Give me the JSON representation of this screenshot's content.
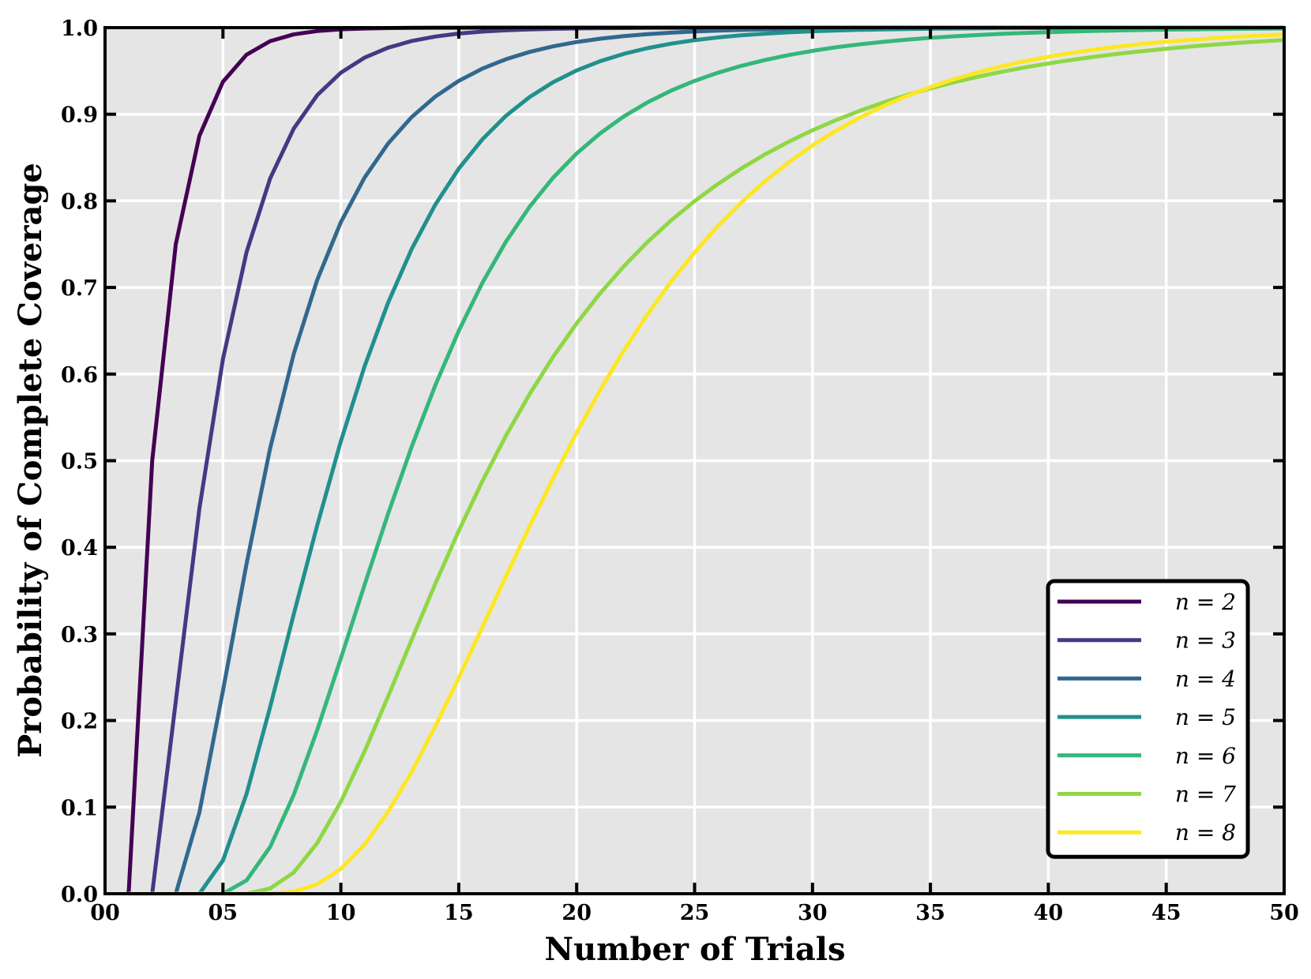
{
  "chart_data": {
    "type": "line",
    "title": "",
    "xlabel": "Number of Trials",
    "ylabel": "Probability of Complete Coverage",
    "xlim": [
      0,
      50
    ],
    "ylim": [
      0.0,
      1.0
    ],
    "grid": true,
    "background_color": "#e5e5e5",
    "legend_position": "lower-right",
    "x_ticks": [
      0,
      5,
      10,
      15,
      20,
      25,
      30,
      35,
      40,
      45,
      50
    ],
    "x_tick_labels": [
      "00",
      "05",
      "10",
      "15",
      "20",
      "25",
      "30",
      "35",
      "40",
      "45",
      "50"
    ],
    "y_ticks": [
      0.0,
      0.1,
      0.2,
      0.3,
      0.4,
      0.5,
      0.6,
      0.7,
      0.8,
      0.9,
      1.0
    ],
    "y_tick_labels": [
      "0.0",
      "0.1",
      "0.2",
      "0.3",
      "0.4",
      "0.5",
      "0.6",
      "0.7",
      "0.8",
      "0.9",
      "1.0"
    ],
    "x": [
      1,
      2,
      3,
      4,
      5,
      6,
      7,
      8,
      9,
      10,
      11,
      12,
      13,
      14,
      15,
      16,
      17,
      18,
      19,
      20,
      21,
      22,
      23,
      24,
      25,
      26,
      27,
      28,
      29,
      30,
      31,
      32,
      33,
      34,
      35,
      36,
      37,
      38,
      39,
      40,
      41,
      42,
      43,
      44,
      45,
      46,
      47,
      48,
      49,
      50
    ],
    "series": [
      {
        "name": "n = 2",
        "color": "#440154",
        "values": [
          0.0,
          0.5,
          0.75,
          0.875,
          0.9375,
          0.96875,
          0.984375,
          0.9921875,
          0.99609375,
          0.998047,
          0.999023,
          0.999512,
          0.999756,
          0.999878,
          0.999939,
          0.999969,
          0.999985,
          0.999992,
          0.999996,
          0.999998,
          0.999999,
          1.0,
          1.0,
          1.0,
          1.0,
          1.0,
          1.0,
          1.0,
          1.0,
          1.0,
          1.0,
          1.0,
          1.0,
          1.0,
          1.0,
          1.0,
          1.0,
          1.0,
          1.0,
          1.0,
          1.0,
          1.0,
          1.0,
          1.0,
          1.0,
          1.0,
          1.0,
          1.0,
          1.0,
          1.0
        ]
      },
      {
        "name": "n = 3",
        "color": "#443983",
        "values": [
          0.0,
          0.0,
          0.222222,
          0.444444,
          0.617284,
          0.740741,
          0.825789,
          0.883402,
          0.922116,
          0.947976,
          0.96526,
          0.976816,
          0.98454,
          0.989693,
          0.993128,
          0.995418,
          0.996945,
          0.997963,
          0.998642,
          0.999095,
          0.999397,
          0.999598,
          0.999732,
          0.999821,
          0.999881,
          0.99992,
          0.999947,
          0.999965,
          0.999976,
          0.999984,
          0.99999,
          0.999993,
          0.999995,
          0.999997,
          0.999998,
          0.999999,
          0.999999,
          0.999999,
          1.0,
          1.0,
          1.0,
          1.0,
          1.0,
          1.0,
          1.0,
          1.0,
          1.0,
          1.0,
          1.0,
          1.0
        ]
      },
      {
        "name": "n = 4",
        "color": "#31688e",
        "values": [
          0.0,
          0.0,
          0.0,
          0.09375,
          0.234375,
          0.380859,
          0.51416,
          0.623016,
          0.708954,
          0.775411,
          0.826595,
          0.866108,
          0.896657,
          0.920276,
          0.938529,
          0.95263,
          0.963518,
          0.971919,
          0.978397,
          0.983388,
          0.987231,
          0.990189,
          0.992464,
          0.994213,
          0.995557,
          0.996589,
          0.997382,
          0.997991,
          0.998458,
          0.998816,
          0.999092,
          0.999303,
          0.999465,
          0.99959,
          0.999685,
          0.999758,
          0.999815,
          0.999858,
          0.999891,
          0.999916,
          0.999936,
          0.999951,
          0.999962,
          0.999971,
          0.999978,
          0.999983,
          0.999987,
          0.99999,
          0.999993,
          0.999994
        ]
      },
      {
        "name": "n = 5",
        "color": "#21908d",
        "values": [
          0.0,
          0.0,
          0.0,
          0.0,
          0.0384,
          0.1152,
          0.215424,
          0.3225344,
          0.4256,
          0.5225,
          0.6085,
          0.6822,
          0.7442,
          0.7954,
          0.8372,
          0.871,
          0.8982,
          0.9198,
          0.937,
          0.9506,
          0.9613,
          0.9697,
          0.9763,
          0.9815,
          0.9855,
          0.9887,
          0.9912,
          0.9931,
          0.9946,
          0.9958,
          0.9967,
          0.9975,
          0.998,
          0.9984,
          0.9988,
          0.999,
          0.9992,
          0.9994,
          0.9995,
          0.9996,
          0.9997,
          0.9998,
          0.9998,
          0.9999,
          0.9999,
          0.9999,
          0.9999,
          0.9999,
          1.0,
          1.0
        ]
      },
      {
        "name": "n = 6",
        "color": "#35b779",
        "values": [
          0.0,
          0.0,
          0.0,
          0.0,
          0.0,
          0.015432,
          0.054012,
          0.114026,
          0.18922,
          0.271812,
          0.356206,
          0.43848,
          0.515895,
          0.58668,
          0.64993,
          0.70528,
          0.752843,
          0.793068,
          0.826725,
          0.8547,
          0.87801,
          0.8975,
          0.9137,
          0.9272,
          0.9385,
          0.948,
          0.956,
          0.9627,
          0.9684,
          0.9732,
          0.9773,
          0.9807,
          0.9836,
          0.9861,
          0.9882,
          0.99,
          0.9915,
          0.9928,
          0.9939,
          0.9948,
          0.9956,
          0.9962,
          0.9968,
          0.9973,
          0.9977,
          0.998,
          0.9983,
          0.9986,
          0.9988,
          0.999
        ]
      },
      {
        "name": "n = 7",
        "color": "#8fd744",
        "values": [
          0.0,
          0.0,
          0.0,
          0.0,
          0.0,
          0.0,
          0.00612,
          0.02448,
          0.0586,
          0.1063,
          0.164,
          0.2276,
          0.2931,
          0.3576,
          0.419,
          0.4763,
          0.5289,
          0.5767,
          0.6198,
          0.6586,
          0.6934,
          0.7245,
          0.7524,
          0.7773,
          0.7997,
          0.8197,
          0.8377,
          0.8539,
          0.8684,
          0.8815,
          0.8933,
          0.9039,
          0.9135,
          0.9221,
          0.9299,
          0.9369,
          0.9432,
          0.9489,
          0.954,
          0.9586,
          0.9628,
          0.9665,
          0.9699,
          0.9729,
          0.9756,
          0.9781,
          0.9803,
          0.9823,
          0.9841,
          0.9857
        ]
      },
      {
        "name": "n = 8",
        "color": "#fde725",
        "values": [
          0.0,
          0.0,
          0.0,
          0.0,
          0.0,
          0.0,
          0.0,
          0.002403,
          0.010815,
          0.0288,
          0.0566,
          0.0945,
          0.1406,
          0.193,
          0.2494,
          0.3078,
          0.3665,
          0.424,
          0.4796,
          0.5324,
          0.5818,
          0.6272,
          0.6688,
          0.7065,
          0.7405,
          0.7712,
          0.7986,
          0.823,
          0.8446,
          0.8639,
          0.881,
          0.8961,
          0.9094,
          0.9211,
          0.9314,
          0.9404,
          0.9483,
          0.9552,
          0.9612,
          0.9664,
          0.9709,
          0.9748,
          0.9782,
          0.9812,
          0.9837,
          0.9859,
          0.9878,
          0.9895,
          0.9909,
          0.9921
        ]
      }
    ]
  }
}
